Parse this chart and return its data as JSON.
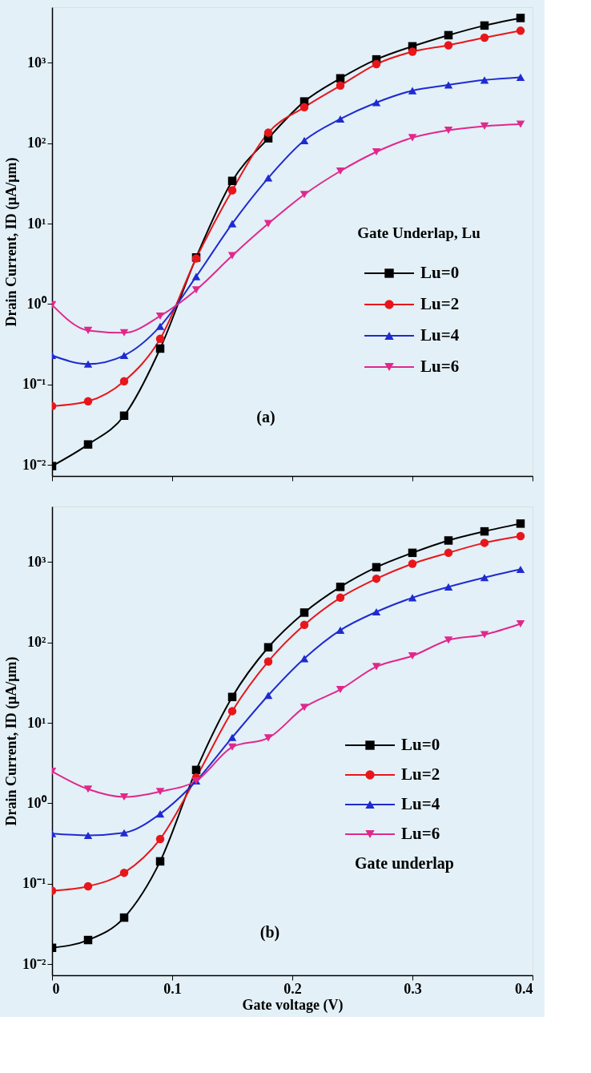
{
  "chart_data": [
    {
      "type": "line",
      "ylabel": "Drain Current, ID (μA/μm)",
      "legend_title": "Gate Underlap, Lu",
      "annotations": [
        "(a)"
      ],
      "x": [
        0,
        0.03,
        0.06,
        0.09,
        0.12,
        0.15,
        0.18,
        0.21,
        0.24,
        0.27,
        0.3,
        0.33,
        0.36,
        0.39
      ],
      "series": [
        {
          "name": "Lu=0",
          "color": "#000000",
          "marker": "square",
          "values": [
            0.0097,
            0.018,
            0.041,
            0.28,
            3.8,
            34,
            115,
            330,
            640,
            1100,
            1600,
            2200,
            2900,
            3600
          ]
        },
        {
          "name": "Lu=2",
          "color": "#e8161b",
          "marker": "circle",
          "values": [
            0.054,
            0.062,
            0.11,
            0.37,
            3.7,
            26,
            135,
            280,
            520,
            960,
            1370,
            1650,
            2050,
            2500
          ]
        },
        {
          "name": "Lu=4",
          "color": "#1f2bd0",
          "marker": "triangle",
          "values": [
            0.23,
            0.18,
            0.23,
            0.53,
            2.2,
            10,
            37,
            108,
            200,
            320,
            450,
            530,
            610,
            660
          ]
        },
        {
          "name": "Lu=6",
          "color": "#e0288c",
          "marker": "triangle-down",
          "values": [
            0.98,
            0.47,
            0.44,
            0.71,
            1.5,
            4,
            10,
            23,
            45,
            78,
            117,
            145,
            163,
            172
          ]
        }
      ],
      "xlim": [
        0,
        0.4
      ],
      "xticks": [
        0,
        0.1,
        0.2,
        0.3,
        0.4
      ],
      "ylim": [
        0.0073,
        4900
      ],
      "yticks": [
        {
          "value": 0.01,
          "label": "10⁻²"
        },
        {
          "value": 0.1,
          "label": "10⁻¹"
        },
        {
          "value": 1,
          "label": "10⁰"
        },
        {
          "value": 10,
          "label": "10¹"
        },
        {
          "value": 100,
          "label": "10²"
        },
        {
          "value": 1000,
          "label": "10³"
        }
      ],
      "log": "y",
      "grid": false,
      "legend": "right",
      "tick_labels": "y",
      "line_style": "solid"
    },
    {
      "type": "line",
      "xlabel": "Gate voltage (V)",
      "ylabel": "Drain Current, ID (μA/μm)",
      "annotations": [
        "Gate underlap",
        "(b)"
      ],
      "x": [
        0,
        0.03,
        0.06,
        0.09,
        0.12,
        0.15,
        0.18,
        0.21,
        0.24,
        0.27,
        0.3,
        0.33,
        0.36,
        0.39
      ],
      "series": [
        {
          "name": "Lu=0",
          "color": "#000000",
          "marker": "square",
          "values": [
            0.016,
            0.02,
            0.038,
            0.19,
            2.6,
            21,
            87,
            235,
            490,
            860,
            1300,
            1850,
            2400,
            3000
          ]
        },
        {
          "name": "Lu=2",
          "color": "#e8161b",
          "marker": "circle",
          "values": [
            0.082,
            0.093,
            0.137,
            0.36,
            2.1,
            14,
            58,
            165,
            360,
            620,
            950,
            1300,
            1730,
            2100
          ]
        },
        {
          "name": "Lu=4",
          "color": "#1f2bd0",
          "marker": "triangle",
          "values": [
            0.42,
            0.4,
            0.43,
            0.74,
            1.9,
            6.6,
            22,
            63,
            142,
            240,
            360,
            490,
            640,
            810
          ]
        },
        {
          "name": "Lu=6",
          "color": "#e0288c",
          "marker": "triangle-down",
          "values": [
            2.5,
            1.5,
            1.2,
            1.4,
            1.9,
            5,
            6.5,
            15.6,
            26,
            50,
            68,
            107,
            125,
            170
          ]
        }
      ],
      "xlim": [
        0,
        0.4
      ],
      "xticks": [
        0,
        0.1,
        0.2,
        0.3,
        0.4
      ],
      "ylim": [
        0.0073,
        4900
      ],
      "yticks": [
        {
          "value": 0.01,
          "label": "10⁻²"
        },
        {
          "value": 0.1,
          "label": "10⁻¹"
        },
        {
          "value": 1,
          "label": "10⁰"
        },
        {
          "value": 10,
          "label": "10¹"
        },
        {
          "value": 100,
          "label": "10²"
        },
        {
          "value": 1000,
          "label": "10³"
        }
      ],
      "log": "y",
      "grid": false,
      "legend": "bottom right",
      "line_style": "solid"
    }
  ]
}
